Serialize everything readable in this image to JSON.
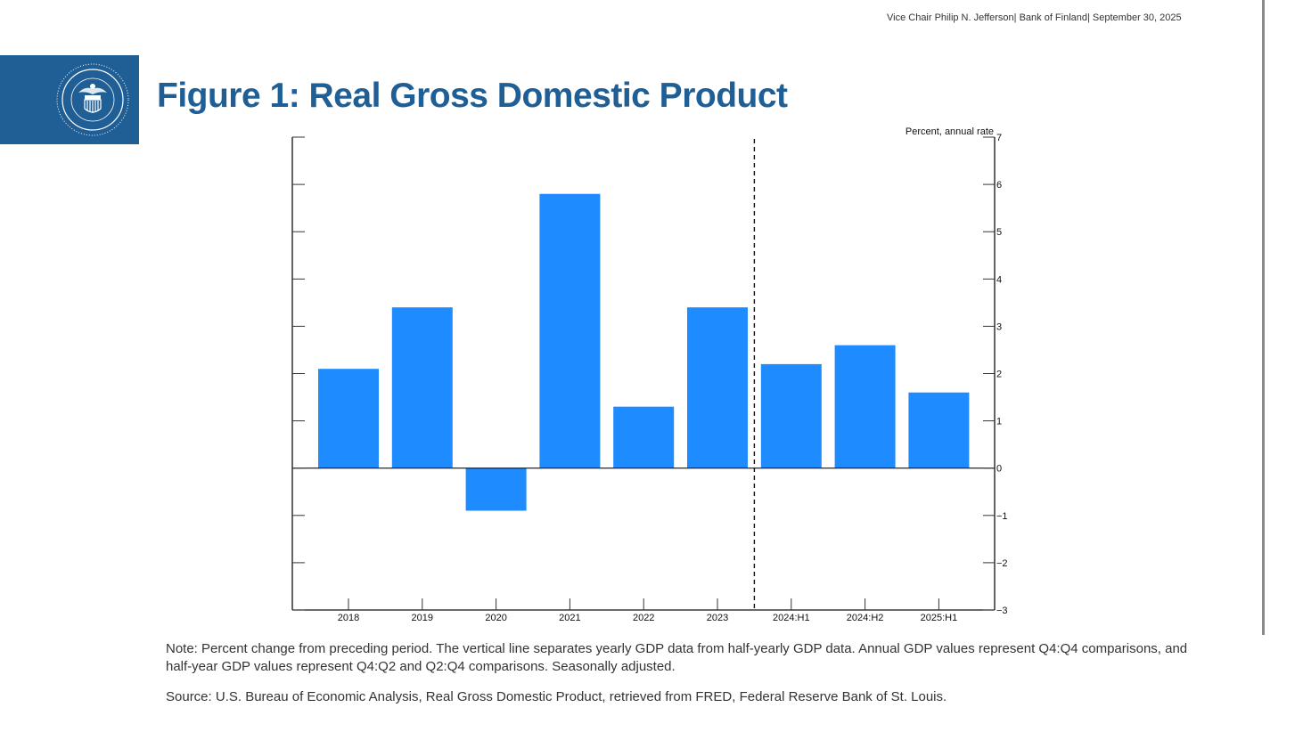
{
  "header": {
    "meta": "Vice Chair Philip N. Jefferson| Bank of Finland| September 30, 2025"
  },
  "logo": {
    "icon": "federal-reserve-seal-icon",
    "band_color": "#1f5f96"
  },
  "title": "Figure 1: Real Gross Domestic Product",
  "chart_data": {
    "type": "bar",
    "title": "Figure 1: Real Gross Domestic Product",
    "ylabel": "Percent, annual rate",
    "xlabel": "",
    "categories": [
      "2018",
      "2019",
      "2020",
      "2021",
      "2022",
      "2023",
      "2024:H1",
      "2024:H2",
      "2025:H1"
    ],
    "values": [
      2.1,
      3.4,
      -0.9,
      5.8,
      1.3,
      3.4,
      2.2,
      2.6,
      1.6
    ],
    "ylim": [
      -3,
      7
    ],
    "yticks": [
      -3,
      -2,
      -1,
      0,
      1,
      2,
      3,
      4,
      5,
      6,
      7
    ],
    "ytick_labels": [
      "−3",
      "−2",
      "−1",
      "0",
      "1",
      "2",
      "3",
      "4",
      "5",
      "6",
      "7"
    ],
    "y_axis_side": "right",
    "bar_color": "#1e8cff",
    "separator": {
      "style": "dashed",
      "between": [
        "2023",
        "2024:H1"
      ]
    },
    "grid": false,
    "legend": "none"
  },
  "note": "Note: Percent change from preceding period. The vertical line separates yearly GDP data from half-yearly GDP data. Annual GDP values represent Q4:Q4 comparisons, and half-year GDP values represent Q4:Q2 and Q2:Q4 comparisons. Seasonally adjusted.",
  "source": "Source: U.S. Bureau of Economic Analysis, Real Gross Domestic Product, retrieved from FRED, Federal Reserve Bank of St. Louis."
}
